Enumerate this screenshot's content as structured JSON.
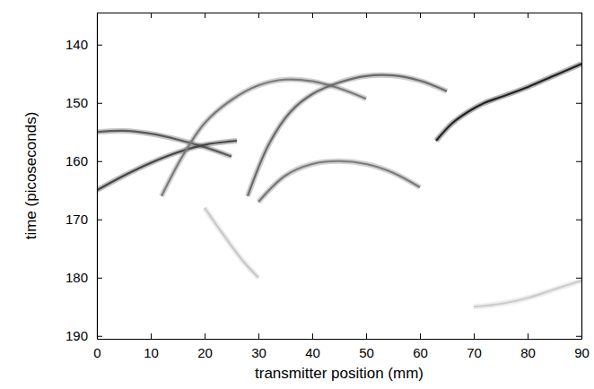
{
  "chart_data": {
    "type": "line",
    "xlabel": "transmitter position (mm)",
    "ylabel": "time (picoseconds)",
    "xlim": [
      0,
      90
    ],
    "xticks": [
      0,
      10,
      20,
      30,
      40,
      50,
      60,
      70,
      80,
      90
    ],
    "ylim": [
      190.5,
      134.5
    ],
    "yticks": [
      140,
      150,
      160,
      170,
      180,
      190
    ],
    "grid": false,
    "series": [
      {
        "color": "#5a5a5a",
        "x": [
          0,
          5,
          10,
          15,
          20,
          25
        ],
        "values": [
          155,
          154.8,
          155.3,
          156.3,
          157.6,
          159.2
        ]
      },
      {
        "color": "#444444",
        "x": [
          0,
          5,
          10,
          15,
          20,
          26
        ],
        "values": [
          165,
          162.5,
          160.3,
          158.5,
          157.2,
          156.5
        ]
      },
      {
        "color": "#7a7a7a",
        "x": [
          12,
          16,
          20,
          25,
          30,
          35,
          40,
          45,
          50
        ],
        "values": [
          166,
          159,
          153.5,
          149.5,
          147,
          146,
          146.3,
          147.5,
          149.3
        ]
      },
      {
        "color": "#6a6a6a",
        "x": [
          28,
          32,
          36,
          40,
          45,
          50,
          55,
          60,
          65
        ],
        "values": [
          166,
          157,
          151.5,
          148.5,
          146.5,
          145.4,
          145.3,
          146.2,
          148
        ]
      },
      {
        "color": "#7a7a7a",
        "x": [
          30,
          35,
          40,
          45,
          50,
          55,
          60
        ],
        "values": [
          167,
          162.5,
          160.5,
          160,
          160.5,
          162,
          164.5
        ]
      },
      {
        "color": "#222222",
        "x": [
          63,
          66,
          69,
          72,
          75,
          80,
          85,
          90
        ],
        "values": [
          156.5,
          153.5,
          151.5,
          150,
          149,
          147.3,
          145.3,
          143.3
        ]
      },
      {
        "color": "#c8c8c8",
        "x": [
          20,
          23,
          27,
          30
        ],
        "values": [
          168,
          172,
          177,
          180
        ]
      },
      {
        "color": "#cccccc",
        "x": [
          70,
          75,
          80,
          85,
          90
        ],
        "values": [
          185,
          184.5,
          183.5,
          182,
          180.5
        ]
      }
    ]
  }
}
